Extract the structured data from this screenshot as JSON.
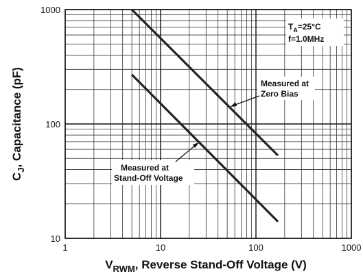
{
  "chart_data": {
    "type": "line",
    "xlabel": {
      "main": "V",
      "sub": "RWM",
      "rest": ", Reverse Stand-Off Voltage (V)"
    },
    "ylabel": {
      "main": "C",
      "sub": "J",
      "rest": ", Capacitance (pF)"
    },
    "annotations": {
      "conditions": {
        "temp_main": "T",
        "temp_sub": "A",
        "temp_rest": "=25°C",
        "freq": "f=1.0MHz"
      },
      "zero_bias": [
        "Measured at",
        "Zero Bias"
      ],
      "stand_off": [
        "Measured at",
        "Stand-Off Voltage"
      ]
    },
    "xscale": "log",
    "yscale": "log",
    "xlim": [
      1,
      1000
    ],
    "ylim": [
      10,
      1000
    ],
    "xticks": [
      1,
      10,
      100,
      1000
    ],
    "yticks": [
      10,
      100,
      1000
    ],
    "grid": true,
    "minor_grid": true,
    "series": [
      {
        "x": [
          5,
          170
        ],
        "values": [
          1000,
          53
        ],
        "color": "#222222"
      },
      {
        "x": [
          5,
          170
        ],
        "values": [
          270,
          14
        ],
        "color": "#222222"
      }
    ]
  }
}
